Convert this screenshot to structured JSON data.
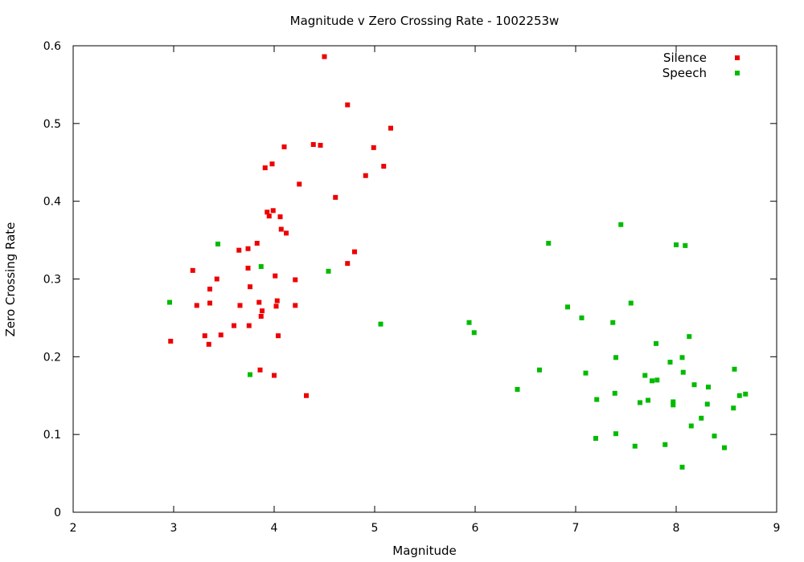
{
  "chart_data": {
    "type": "scatter",
    "title": "Magnitude v Zero Crossing Rate - 1002253w",
    "xlabel": "Magnitude",
    "ylabel": "Zero Crossing Rate",
    "xlim": [
      2,
      9
    ],
    "ylim": [
      0,
      0.6
    ],
    "xticks": [
      "2",
      "3",
      "4",
      "5",
      "6",
      "7",
      "8",
      "9"
    ],
    "yticks": [
      "0",
      "0.1",
      "0.2",
      "0.3",
      "0.4",
      "0.5",
      "0.6"
    ],
    "grid": false,
    "legend_position": "top-right",
    "series": [
      {
        "name": "Silence",
        "color": "#ee0000",
        "marker": "filled-square",
        "points": [
          [
            4.5,
            0.586
          ],
          [
            4.73,
            0.524
          ],
          [
            5.16,
            0.494
          ],
          [
            4.1,
            0.47
          ],
          [
            4.99,
            0.469
          ],
          [
            4.39,
            0.473
          ],
          [
            4.46,
            0.472
          ],
          [
            3.91,
            0.443
          ],
          [
            3.98,
            0.448
          ],
          [
            5.09,
            0.445
          ],
          [
            4.91,
            0.433
          ],
          [
            4.25,
            0.422
          ],
          [
            4.61,
            0.405
          ],
          [
            3.93,
            0.386
          ],
          [
            3.99,
            0.388
          ],
          [
            3.95,
            0.381
          ],
          [
            4.06,
            0.38
          ],
          [
            4.07,
            0.364
          ],
          [
            4.12,
            0.359
          ],
          [
            3.83,
            0.346
          ],
          [
            3.65,
            0.337
          ],
          [
            3.74,
            0.339
          ],
          [
            4.8,
            0.335
          ],
          [
            4.73,
            0.32
          ],
          [
            3.74,
            0.314
          ],
          [
            3.19,
            0.311
          ],
          [
            4.01,
            0.304
          ],
          [
            3.43,
            0.3
          ],
          [
            4.21,
            0.299
          ],
          [
            3.76,
            0.29
          ],
          [
            3.36,
            0.287
          ],
          [
            4.03,
            0.272
          ],
          [
            3.85,
            0.27
          ],
          [
            3.36,
            0.269
          ],
          [
            4.02,
            0.265
          ],
          [
            4.21,
            0.266
          ],
          [
            3.23,
            0.266
          ],
          [
            3.66,
            0.266
          ],
          [
            3.88,
            0.259
          ],
          [
            3.87,
            0.252
          ],
          [
            3.6,
            0.24
          ],
          [
            3.75,
            0.24
          ],
          [
            3.47,
            0.228
          ],
          [
            3.31,
            0.227
          ],
          [
            4.04,
            0.227
          ],
          [
            2.97,
            0.22
          ],
          [
            3.35,
            0.216
          ],
          [
            3.86,
            0.183
          ],
          [
            4.0,
            0.176
          ],
          [
            4.32,
            0.15
          ]
        ]
      },
      {
        "name": "Speech",
        "color": "#00bb00",
        "marker": "filled-square",
        "points": [
          [
            7.45,
            0.37
          ],
          [
            6.73,
            0.346
          ],
          [
            8.0,
            0.344
          ],
          [
            8.09,
            0.343
          ],
          [
            3.44,
            0.345
          ],
          [
            3.87,
            0.316
          ],
          [
            4.54,
            0.31
          ],
          [
            2.96,
            0.27
          ],
          [
            7.55,
            0.269
          ],
          [
            6.92,
            0.264
          ],
          [
            7.06,
            0.25
          ],
          [
            7.37,
            0.244
          ],
          [
            5.94,
            0.244
          ],
          [
            5.06,
            0.242
          ],
          [
            5.99,
            0.231
          ],
          [
            8.13,
            0.226
          ],
          [
            7.8,
            0.217
          ],
          [
            7.4,
            0.199
          ],
          [
            8.06,
            0.199
          ],
          [
            7.94,
            0.193
          ],
          [
            8.58,
            0.184
          ],
          [
            6.64,
            0.183
          ],
          [
            8.07,
            0.18
          ],
          [
            7.1,
            0.179
          ],
          [
            3.76,
            0.177
          ],
          [
            7.69,
            0.176
          ],
          [
            7.81,
            0.17
          ],
          [
            7.76,
            0.169
          ],
          [
            8.18,
            0.164
          ],
          [
            8.32,
            0.161
          ],
          [
            6.42,
            0.158
          ],
          [
            7.39,
            0.153
          ],
          [
            8.69,
            0.152
          ],
          [
            8.63,
            0.15
          ],
          [
            7.21,
            0.145
          ],
          [
            7.72,
            0.144
          ],
          [
            7.97,
            0.142
          ],
          [
            7.64,
            0.141
          ],
          [
            7.97,
            0.138
          ],
          [
            8.31,
            0.139
          ],
          [
            8.57,
            0.134
          ],
          [
            8.25,
            0.121
          ],
          [
            8.15,
            0.111
          ],
          [
            7.4,
            0.101
          ],
          [
            8.38,
            0.098
          ],
          [
            7.2,
            0.095
          ],
          [
            7.89,
            0.087
          ],
          [
            7.59,
            0.085
          ],
          [
            8.48,
            0.083
          ],
          [
            8.06,
            0.058
          ]
        ]
      }
    ]
  }
}
